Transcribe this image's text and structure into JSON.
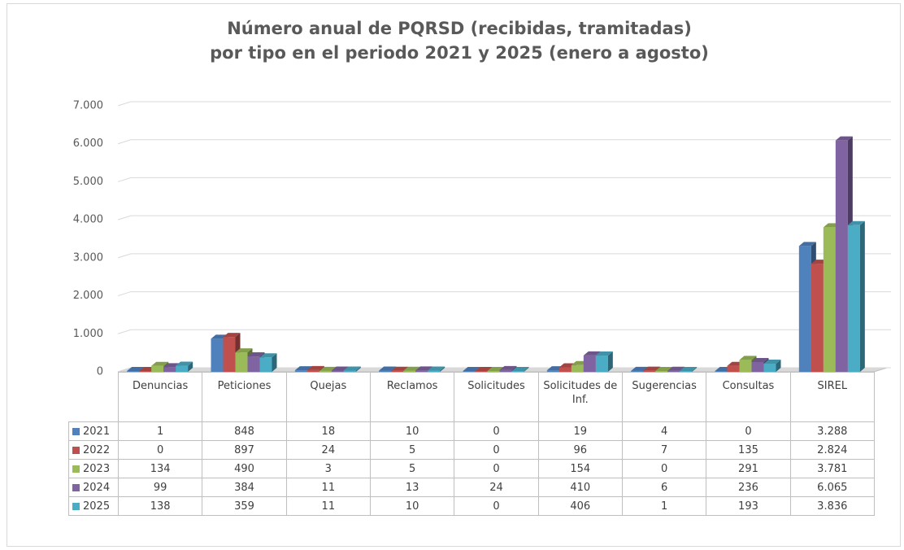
{
  "chart_data": {
    "type": "bar3d",
    "title": [
      "Número anual de PQRSD (recibidas, tramitadas)",
      "por tipo en el periodo 2021 y 2025 (enero a agosto)"
    ],
    "categories": [
      "Denuncias",
      "Peticiones",
      "Quejas",
      "Reclamos",
      "Solicitudes",
      "Solicitudes de Inf.",
      "Sugerencias",
      "Consultas",
      "SIREL"
    ],
    "series": [
      {
        "name": "2021",
        "color": "#4f81bd",
        "values": [
          1,
          848,
          18,
          10,
          0,
          19,
          4,
          0,
          3288
        ],
        "value_labels": [
          "1",
          "848",
          "18",
          "10",
          "0",
          "19",
          "4",
          "0",
          "3.288"
        ]
      },
      {
        "name": "2022",
        "color": "#c0504d",
        "values": [
          0,
          897,
          24,
          5,
          0,
          96,
          7,
          135,
          2824
        ],
        "value_labels": [
          "0",
          "897",
          "24",
          "5",
          "0",
          "96",
          "7",
          "135",
          "2.824"
        ]
      },
      {
        "name": "2023",
        "color": "#9bbb59",
        "values": [
          134,
          490,
          3,
          5,
          0,
          154,
          0,
          291,
          3781
        ],
        "value_labels": [
          "134",
          "490",
          "3",
          "5",
          "0",
          "154",
          "0",
          "291",
          "3.781"
        ]
      },
      {
        "name": "2024",
        "color": "#8064a2",
        "values": [
          99,
          384,
          11,
          13,
          24,
          410,
          6,
          236,
          6065
        ],
        "value_labels": [
          "99",
          "384",
          "11",
          "13",
          "24",
          "410",
          "6",
          "236",
          "6.065"
        ]
      },
      {
        "name": "2025",
        "color": "#4bacc6",
        "values": [
          138,
          359,
          11,
          10,
          0,
          406,
          1,
          193,
          3836
        ],
        "value_labels": [
          "138",
          "359",
          "11",
          "10",
          "0",
          "406",
          "1",
          "193",
          "3.836"
        ]
      }
    ],
    "ylim": [
      0,
      7000
    ],
    "yticks": [
      0,
      {
        "value": 1000,
        "label": "1.000"
      },
      {
        "value": 2000,
        "label": "2.000"
      },
      {
        "value": 3000,
        "label": "3.000"
      },
      {
        "value": 4000,
        "label": "4.000"
      },
      {
        "value": 5000,
        "label": "5.000"
      },
      {
        "value": 6000,
        "label": "6.000"
      },
      {
        "value": 7000,
        "label": "7.000"
      }
    ],
    "grid": true
  }
}
